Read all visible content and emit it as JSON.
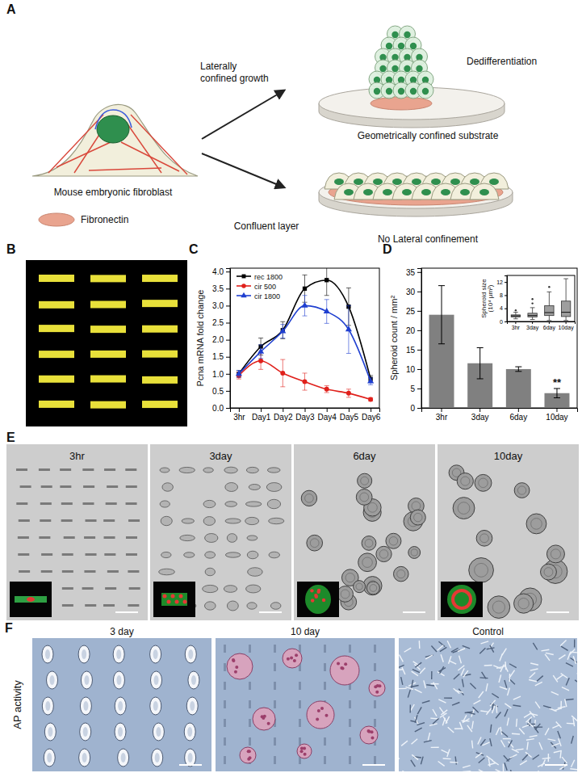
{
  "panel_labels": [
    "A",
    "B",
    "C",
    "D",
    "E",
    "F"
  ],
  "diagram": {
    "cell_label": "Mouse embryonic fibroblast",
    "legend_label": "Fibronectin",
    "arrow_label": [
      "Laterally",
      "confined growth"
    ],
    "top_outcome": "Dedifferentiation",
    "top_substrate": "Geometrically confined substrate",
    "bottom_substrate": "Confluent layer",
    "bottom_outcome": "No Lateral confinement"
  },
  "chart_data": [
    {
      "type": "line",
      "ylabel": "Pcna mRNA fold change",
      "categories": [
        "3hr",
        "Day1",
        "Day2",
        "Day3",
        "Day4",
        "Day5",
        "Day6"
      ],
      "series": [
        {
          "name": "rec 1800",
          "color": "#000000",
          "marker": "square",
          "values": [
            1.0,
            1.8,
            2.28,
            3.5,
            3.75,
            2.97,
            0.85
          ],
          "errors": [
            0.1,
            0.25,
            0.25,
            0.4,
            0.45,
            0.55,
            0.1
          ]
        },
        {
          "name": "cir 500",
          "color": "#e0201b",
          "marker": "circle",
          "values": [
            0.95,
            1.38,
            1.02,
            0.77,
            0.55,
            0.43,
            0.25
          ],
          "errors": [
            0.1,
            0.25,
            0.4,
            0.25,
            0.1,
            0.12,
            0.05
          ]
        },
        {
          "name": "cir 1800",
          "color": "#1f3fd0",
          "marker": "triangle",
          "values": [
            1.0,
            1.65,
            2.25,
            3.0,
            2.83,
            2.3,
            0.78
          ],
          "errors": [
            0.1,
            0.2,
            0.2,
            0.3,
            0.35,
            0.7,
            0.1
          ]
        }
      ],
      "ylim": [
        0,
        4.1
      ],
      "yticks": [
        {
          "value": 0,
          "label": "0.0"
        },
        {
          "value": 0.5,
          "label": "0.5"
        },
        {
          "value": 1,
          "label": "1.0"
        },
        {
          "value": 1.5,
          "label": "1.5"
        },
        {
          "value": 2,
          "label": "2.0"
        },
        {
          "value": 2.5,
          "label": "2.5"
        },
        {
          "value": 3,
          "label": "3.0"
        },
        {
          "value": 3.5,
          "label": "3.5"
        },
        {
          "value": 4,
          "label": "4.0"
        }
      ],
      "legend": "upper left"
    },
    {
      "type": "bar",
      "ylabel": "Spheroid count / mm²",
      "categories": [
        "3hr",
        "3day",
        "6day",
        "10day"
      ],
      "values": [
        24,
        11.5,
        10,
        3.8
      ],
      "errors": [
        7.5,
        4,
        0.6,
        1.2
      ],
      "color": "#808080",
      "ylim": [
        0,
        36
      ],
      "yticks": [
        0,
        5,
        10,
        15,
        20,
        25,
        30,
        35
      ],
      "annotations": [
        {
          "text": "**",
          "category": "10day"
        }
      ]
    },
    {
      "type": "box",
      "ylabel": [
        "Spheroid size",
        "(10⁴ µm²)"
      ],
      "categories": [
        "3hr",
        "3day",
        "6day",
        "10day"
      ],
      "boxes": [
        {
          "min": 0.8,
          "q1": 1.4,
          "median": 1.7,
          "q3": 2.0,
          "max": 2.8,
          "outliers": [
            3.4
          ]
        },
        {
          "min": 0.6,
          "q1": 1.4,
          "median": 1.8,
          "q3": 2.5,
          "max": 4.2,
          "outliers": [
            5.5,
            6.8
          ]
        },
        {
          "min": 0.3,
          "q1": 1.8,
          "median": 2.7,
          "q3": 4.8,
          "max": 9.0,
          "outliers": [
            10.5
          ]
        },
        {
          "min": 0.3,
          "q1": 1.5,
          "median": 2.8,
          "q3": 6.2,
          "max": 13.0,
          "outliers": []
        }
      ],
      "color": "#9e9e9e",
      "ylim": [
        0,
        14
      ],
      "yticks": [
        0,
        4,
        8,
        12
      ]
    }
  ],
  "micrographs": {
    "e_labels": [
      "3hr",
      "3day",
      "6day",
      "10day"
    ],
    "f_labels": [
      "3 day",
      "10 day",
      "Control"
    ],
    "f_row_label": "AP activity"
  }
}
